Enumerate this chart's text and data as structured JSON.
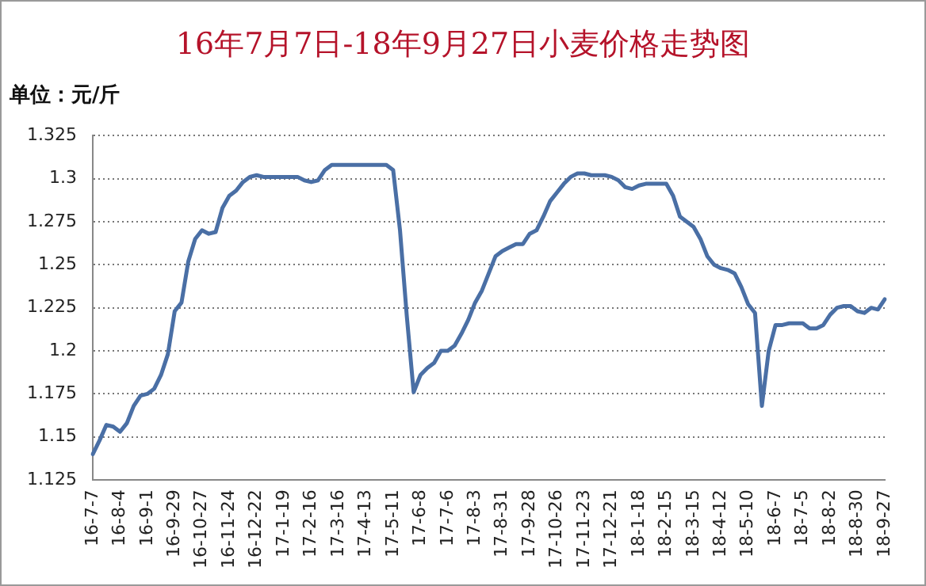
{
  "chart_data": {
    "type": "line",
    "title": "16年7月7日-18年9月27日小麦价格走势图",
    "ylabel": "单位：元/斤",
    "categories": [
      "16-7-7",
      null,
      null,
      null,
      "16-8-4",
      null,
      null,
      null,
      "16-9-1",
      null,
      null,
      null,
      "16-9-29",
      null,
      null,
      null,
      "16-10-27",
      null,
      null,
      null,
      "16-11-24",
      null,
      null,
      null,
      "16-12-22",
      null,
      null,
      null,
      "17-1-19",
      null,
      null,
      null,
      "17-2-16",
      null,
      null,
      null,
      "17-3-16",
      null,
      null,
      null,
      "17-4-13",
      null,
      null,
      null,
      "17-5-11",
      null,
      null,
      null,
      "17-6-8",
      null,
      null,
      null,
      "17-7-6",
      null,
      null,
      null,
      "17-8-3",
      null,
      null,
      null,
      "17-8-31",
      null,
      null,
      null,
      "17-9-28",
      null,
      null,
      null,
      "17-10-26",
      null,
      null,
      null,
      "17-11-23",
      null,
      null,
      null,
      "17-12-21",
      null,
      null,
      null,
      "18-1-18",
      null,
      null,
      null,
      "18-2-15",
      null,
      null,
      null,
      "18-3-15",
      null,
      null,
      null,
      "18-4-12",
      null,
      null,
      null,
      "18-5-10",
      null,
      null,
      null,
      "18-6-7",
      null,
      null,
      null,
      "18-7-5",
      null,
      null,
      null,
      "18-8-2",
      null,
      null,
      null,
      "18-8-30",
      null,
      null,
      null,
      "18-9-27"
    ],
    "series": [
      {
        "color": "#4a6fa5",
        "values": [
          1.14,
          1.148,
          1.157,
          1.156,
          1.153,
          1.158,
          1.168,
          1.174,
          1.175,
          1.178,
          1.186,
          1.198,
          1.223,
          1.228,
          1.252,
          1.265,
          1.27,
          1.268,
          1.269,
          1.283,
          1.29,
          1.293,
          1.298,
          1.301,
          1.302,
          1.301,
          1.301,
          1.301,
          1.301,
          1.301,
          1.301,
          1.299,
          1.298,
          1.299,
          1.305,
          1.308,
          1.308,
          1.308,
          1.308,
          1.308,
          1.308,
          1.308,
          1.308,
          1.308,
          1.305,
          1.27,
          1.22,
          1.176,
          1.186,
          1.19,
          1.193,
          1.2,
          1.2,
          1.203,
          1.21,
          1.218,
          1.228,
          1.235,
          1.245,
          1.255,
          1.258,
          1.26,
          1.262,
          1.262,
          1.268,
          1.27,
          1.278,
          1.287,
          1.292,
          1.297,
          1.301,
          1.303,
          1.303,
          1.302,
          1.302,
          1.302,
          1.301,
          1.299,
          1.295,
          1.294,
          1.296,
          1.297,
          1.297,
          1.297,
          1.297,
          1.29,
          1.278,
          1.275,
          1.272,
          1.265,
          1.255,
          1.25,
          1.248,
          1.247,
          1.245,
          1.237,
          1.227,
          1.222,
          1.168,
          1.2,
          1.215,
          1.215,
          1.216,
          1.216,
          1.216,
          1.213,
          1.213,
          1.215,
          1.221,
          1.225,
          1.226,
          1.226,
          1.223,
          1.222,
          1.225,
          1.224,
          1.23
        ]
      }
    ],
    "ylim": [
      1.125,
      1.325
    ],
    "yticks": [
      1.125,
      1.15,
      1.175,
      1.2,
      1.225,
      1.25,
      1.275,
      1.3,
      1.325
    ],
    "grid": "y",
    "legend": false,
    "marker": "none",
    "line_style": "solid"
  }
}
